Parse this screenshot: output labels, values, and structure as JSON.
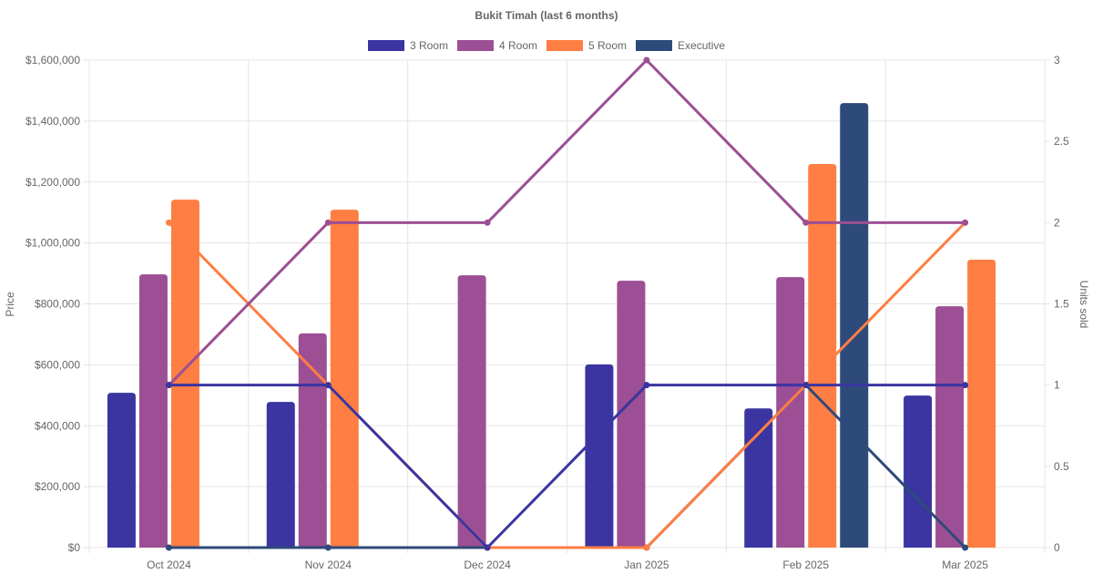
{
  "chart_data": {
    "type": "bar",
    "title": "Bukit Timah (last 6 months)",
    "categories": [
      "Oct 2024",
      "Nov 2024",
      "Dec 2024",
      "Jan 2025",
      "Feb 2025",
      "Mar 2025"
    ],
    "ylabel": "Price",
    "y2label": "Units sold",
    "ylim": [
      0,
      1600000
    ],
    "y2lim": [
      0,
      3
    ],
    "yticks": [
      "$0",
      "$200,000",
      "$400,000",
      "$600,000",
      "$800,000",
      "$1,000,000",
      "$1,200,000",
      "$1,400,000",
      "$1,600,000"
    ],
    "y2ticks": [
      "0",
      "0.5",
      "1",
      "1.5",
      "2",
      "2.5",
      "3"
    ],
    "legend_position": "top",
    "grid": true,
    "series": [
      {
        "name": "3 Room",
        "color": "#3a35a0",
        "price": [
          508000,
          478000,
          null,
          601000,
          457000,
          499000
        ],
        "units": [
          1,
          1,
          0,
          1,
          1,
          1
        ]
      },
      {
        "name": "4 Room",
        "color": "#9c4f94",
        "price": [
          897000,
          703000,
          894000,
          876000,
          888000,
          792000
        ],
        "units": [
          1,
          2,
          2,
          3,
          2,
          2
        ]
      },
      {
        "name": "5 Room",
        "color": "#fe7e43",
        "price": [
          1142000,
          1109000,
          null,
          null,
          1259000,
          945000
        ],
        "units": [
          2,
          1,
          0,
          0,
          1,
          2
        ]
      },
      {
        "name": "Executive",
        "color": "#2e4a7a",
        "price": [
          null,
          null,
          null,
          null,
          1459000,
          null
        ],
        "units": [
          0,
          0,
          0,
          0,
          1,
          0
        ]
      }
    ]
  }
}
